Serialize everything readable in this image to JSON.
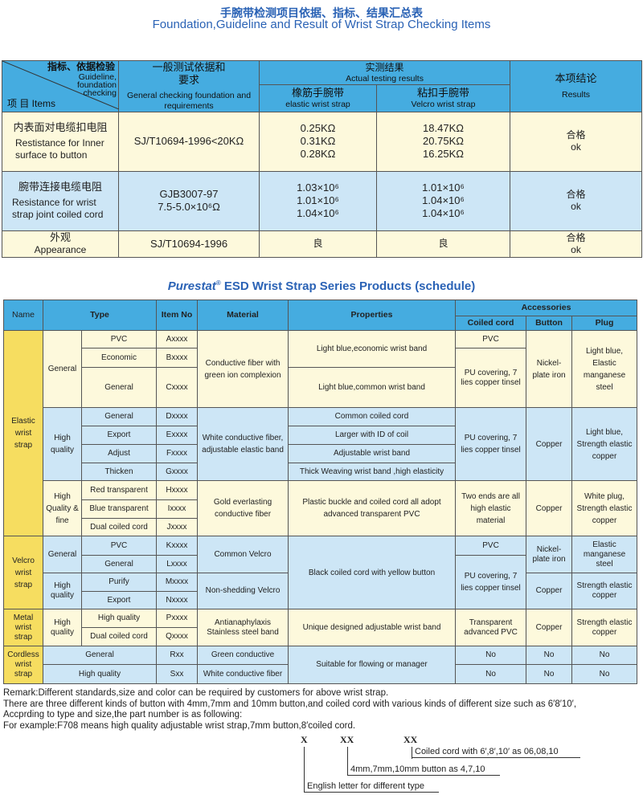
{
  "t1": {
    "title_cn": "手腕带检测项目依据、指标、结果汇总表",
    "title_en": "Foundation,Guideline and Result of Wrist Strap Checking Items",
    "h": {
      "guide_cn": "指标、依据检验",
      "guide_en": "Guideline, foundation checking",
      "items": "项 目  Items",
      "basis_cn": "一般测试依据和要求",
      "basis_en": "General checking foundation and requirements",
      "actual_cn": "实测结果",
      "actual_en": "Actual testing results",
      "elastic_cn": "橡筋手腕带",
      "elastic_en": "elastic wrist strap",
      "velcro_cn": "粘扣手腕带",
      "velcro_en": "Velcro wrist strap",
      "result_cn": "本项结论",
      "result_en": "Results"
    },
    "rows": [
      {
        "item_cn": "内表面对电缆扣电阻",
        "item_en": "Restistance for Inner surface to button",
        "basis": "SJ/T10694-1996<20KΩ",
        "elastic": [
          "0.25KΩ",
          "0.31KΩ",
          "0.28KΩ"
        ],
        "velcro": [
          "18.47KΩ",
          "20.75KΩ",
          "16.25KΩ"
        ],
        "result_cn": "合格",
        "result_en": "ok"
      },
      {
        "item_cn": "腕带连接电缆电阻",
        "item_en": "Resistance for wrist strap joint coiled cord",
        "basis": "GJB3007-97",
        "basis2": "7.5-5.0×10⁶Ω",
        "elastic": [
          "1.03×10⁶",
          "1.01×10⁶",
          "1.04×10⁶"
        ],
        "velcro": [
          "1.01×10⁶",
          "1.04×10⁶",
          "1.04×10⁶"
        ],
        "result_cn": "合格",
        "result_en": "ok"
      },
      {
        "item_cn": "外观",
        "item_en": "Appearance",
        "basis": "SJ/T10694-1996",
        "elastic": [
          "良"
        ],
        "velcro": [
          "良"
        ],
        "result_cn": "合格",
        "result_en": "ok"
      }
    ]
  },
  "t2": {
    "brand": "Purestat",
    "reg": "®",
    "title": "ESD Wrist Strap Series Products (schedule)",
    "h": {
      "name": "Name",
      "type": "Type",
      "item": "Item No",
      "material": "Material",
      "properties": "Properties",
      "accessories": "Accessories",
      "coiled": "Coiled cord",
      "button": "Button",
      "plug": "Plug"
    },
    "rows": [
      [
        "Elastic wrist strap",
        "General",
        "PVC",
        "Axxxx",
        "Conductive fiber with green ion complexion",
        "Light blue,economic wrist band",
        "PVC",
        "Nickel-plate iron",
        "Light blue, Elastic manganese steel"
      ],
      [
        "Economic",
        "Bxxxx",
        "PU covering, 7 lies copper tinsel"
      ],
      [
        "General",
        "Cxxxx",
        "Light blue,common wrist band"
      ],
      [
        "High quality",
        "General",
        "Dxxxx",
        "White conductive fiber, adjustable elastic band",
        "Common coiled cord",
        "PU covering, 7 lies copper tinsel",
        "Copper",
        "Light blue, Strength elastic copper"
      ],
      [
        "Export",
        "Exxxx",
        "Larger with ID of coil"
      ],
      [
        "Adjust",
        "Fxxxx",
        "Adjustable wrist band"
      ],
      [
        "Thicken",
        "Gxxxx",
        "Thick Weaving wrist band ,high elasticity"
      ],
      [
        "High Quality & fine",
        "Red transparent",
        "Hxxxx",
        "Gold everlasting conductive fiber",
        "Plastic buckle and coiled cord all adopt advanced transparent PVC",
        "Two ends are all high elastic material",
        "Copper",
        "White plug, Strength elastic copper"
      ],
      [
        "Blue transparent",
        "Ixxxx"
      ],
      [
        "Dual coiled cord",
        "Jxxxx"
      ],
      [
        "Velcro wrist strap",
        "General",
        "PVC",
        "Kxxxx",
        "Common Velcro",
        "Black coiled cord with yellow button",
        "PVC",
        "Nickel-plate iron",
        "Elastic manganese steel"
      ],
      [
        "General",
        "Lxxxx",
        "PU covering, 7 lies copper tinsel"
      ],
      [
        "High quality",
        "Purify",
        "Mxxxx",
        "Non-shedding Velcro",
        "Copper",
        "Strength elastic copper"
      ],
      [
        "Export",
        "Nxxxx"
      ],
      [
        "Metal wrist strap",
        "High quality",
        "High quality",
        "Pxxxx",
        "Antianaphylaxis Stainless steel band",
        "Unique designed adjustable wrist band",
        "Transparent advanced PVC",
        "Copper",
        "Strength elastic copper"
      ],
      [
        "Dual coiled cord",
        "Qxxxx"
      ],
      [
        "Cordless wrist strap",
        "General",
        "Rxx",
        "Green conductive",
        "Suitable for flowing or manager",
        "No",
        "No",
        "No"
      ],
      [
        "High quality",
        "Sxx",
        "White conductive fiber",
        "No",
        "No",
        "No"
      ]
    ]
  },
  "remark": [
    "Remark:Different standards,size and color can be required by customers for above wrist strap.",
    "There are three different kinds of button with 4mm,7mm and 10mm button,and coiled cord with various kinds of different size such as 6′8′10′,",
    "Accprding to type and size,the part number is as following:",
    "For example:F708 means high quality adjustable wrist strap,7mm button,8′coiled cord."
  ],
  "code": {
    "x": "X",
    "xx1": "XX",
    "xx2": "XX",
    "l1": "Coiled cord with 6′,8′,10′ as 06,08,10",
    "l2": "4mm,7mm,10mm button as 4,7,10",
    "l3": "English letter for different type"
  }
}
